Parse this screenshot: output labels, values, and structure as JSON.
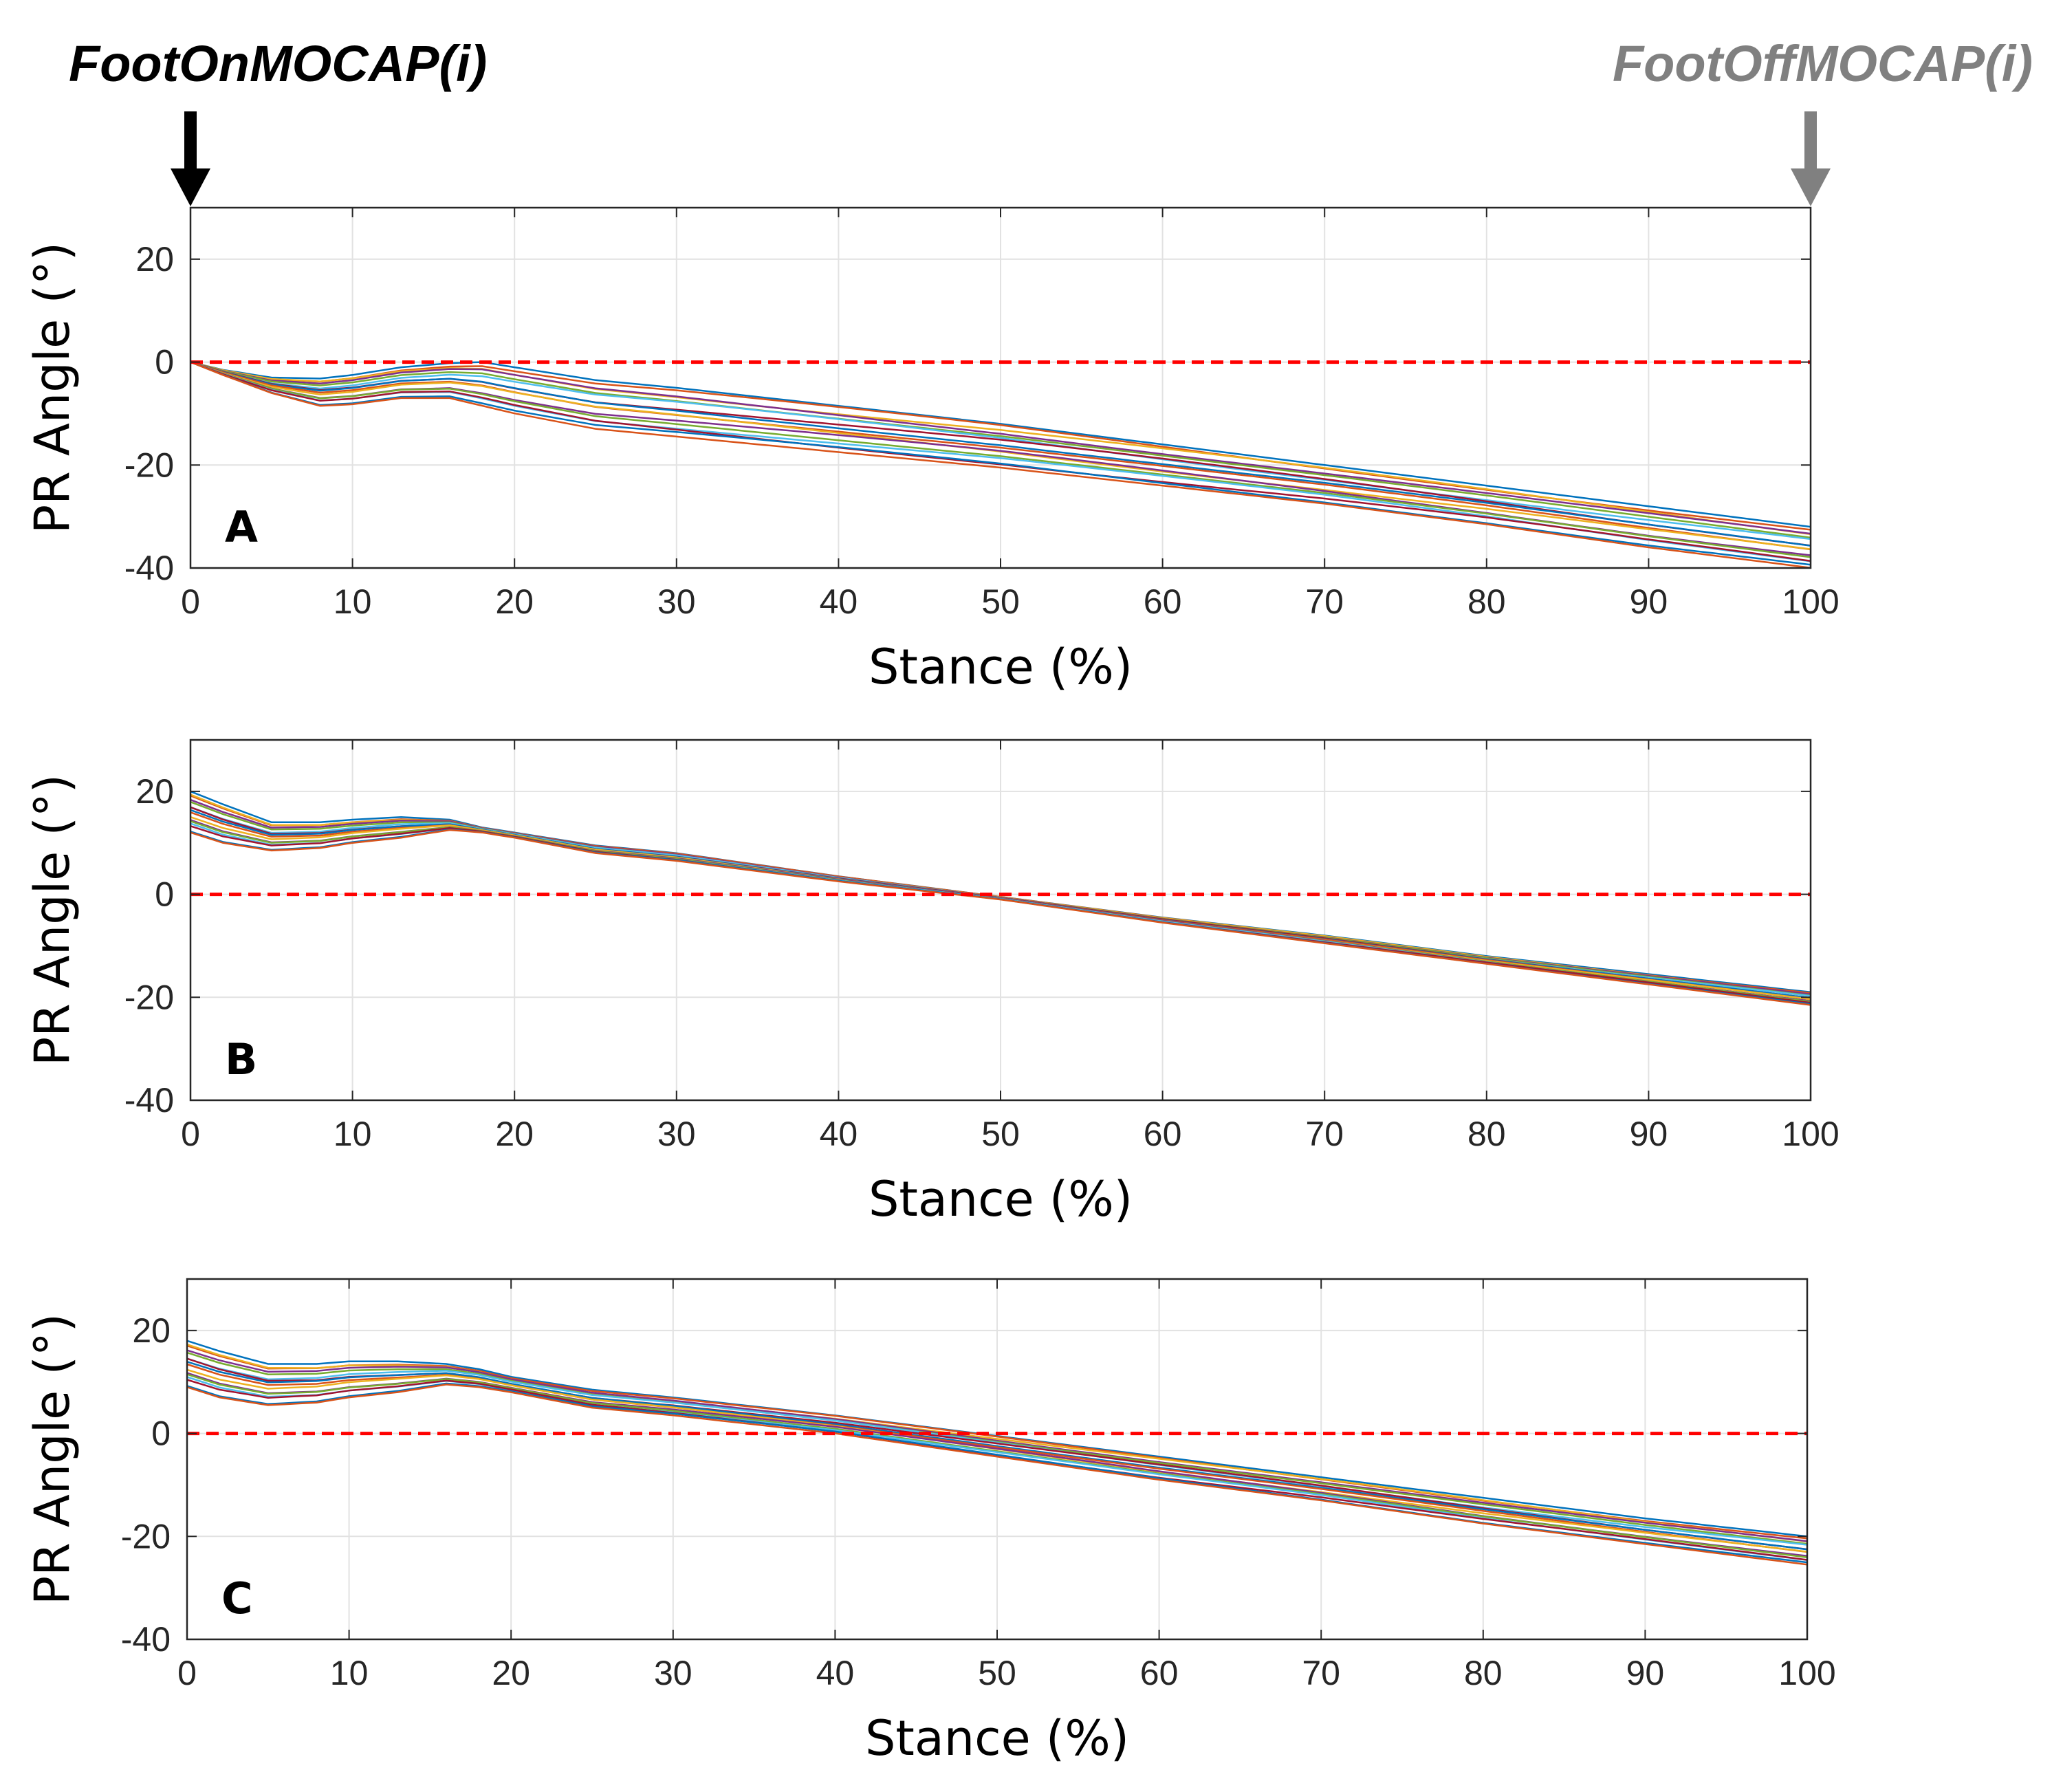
{
  "annotations": {
    "foot_on": {
      "prefix": "FootOnMOCAP(",
      "index": "i",
      "suffix": ")",
      "color": "#000000"
    },
    "foot_off": {
      "prefix": "FootOffMOCAP(",
      "index": "i",
      "suffix": ")",
      "color": "#808080"
    }
  },
  "chart_data": [
    {
      "type": "line",
      "panel_label": "A",
      "xlabel": "Stance (%)",
      "ylabel": "PR Angle (°)",
      "xlim": [
        0,
        100
      ],
      "ylim": [
        -40,
        30
      ],
      "xticks": [
        "0",
        "10",
        "20",
        "30",
        "40",
        "50",
        "60",
        "70",
        "80",
        "90",
        "100"
      ],
      "yticks": [
        "20",
        "0",
        "-20",
        "-40"
      ],
      "grid": true,
      "reference_line": {
        "y": 0,
        "color": "#ff0000",
        "style": "dashed"
      },
      "series_count": 16,
      "series_envelope": {
        "x": [
          0,
          2,
          5,
          8,
          10,
          13,
          16,
          18,
          20,
          25,
          30,
          40,
          50,
          60,
          70,
          80,
          90,
          100
        ],
        "upper": [
          0,
          -1.5,
          -3.0,
          -3.2,
          -2.5,
          -1.0,
          -0.2,
          0,
          -1.0,
          -3.5,
          -5.0,
          -8.5,
          -12.0,
          -16.0,
          -20.0,
          -24.0,
          -28.0,
          -32.0
        ],
        "lower": [
          0,
          -2.5,
          -6.0,
          -8.5,
          -8.2,
          -7.0,
          -7.0,
          -8.5,
          -10.0,
          -13.0,
          -14.5,
          -17.5,
          -20.5,
          -24.0,
          -27.5,
          -31.5,
          -36.0,
          -40.0
        ]
      }
    },
    {
      "type": "line",
      "panel_label": "B",
      "xlabel": "Stance (%)",
      "ylabel": "PR Angle (°)",
      "xlim": [
        0,
        100
      ],
      "ylim": [
        -40,
        30
      ],
      "xticks": [
        "0",
        "10",
        "20",
        "30",
        "40",
        "50",
        "60",
        "70",
        "80",
        "90",
        "100"
      ],
      "yticks": [
        "20",
        "0",
        "-20",
        "-40"
      ],
      "grid": true,
      "reference_line": {
        "y": 0,
        "color": "#ff0000",
        "style": "dashed"
      },
      "series_count": 16,
      "series_envelope": {
        "x": [
          0,
          2,
          5,
          8,
          10,
          13,
          16,
          18,
          20,
          25,
          30,
          40,
          50,
          60,
          70,
          80,
          90,
          100
        ],
        "upper": [
          20.0,
          17.5,
          14.0,
          14.0,
          14.5,
          15.0,
          14.5,
          13.0,
          12.0,
          9.5,
          8.0,
          3.5,
          -0.5,
          -4.5,
          -8.0,
          -12.0,
          -15.5,
          -19.0
        ],
        "lower": [
          12.0,
          10.0,
          8.5,
          9.0,
          10.0,
          11.0,
          12.5,
          12.0,
          11.0,
          8.0,
          6.5,
          2.5,
          -1.0,
          -5.5,
          -9.5,
          -13.5,
          -17.5,
          -21.5
        ]
      }
    },
    {
      "type": "line",
      "panel_label": "C",
      "xlabel": "Stance (%)",
      "ylabel": "PR Angle (°)",
      "xlim": [
        0,
        100
      ],
      "ylim": [
        -40,
        30
      ],
      "xticks": [
        "0",
        "10",
        "20",
        "30",
        "40",
        "50",
        "60",
        "70",
        "80",
        "90",
        "100"
      ],
      "yticks": [
        "20",
        "0",
        "-20",
        "-40"
      ],
      "grid": true,
      "reference_line": {
        "y": 0,
        "color": "#ff0000",
        "style": "dashed"
      },
      "series_count": 16,
      "series_envelope": {
        "x": [
          0,
          2,
          5,
          8,
          10,
          13,
          16,
          18,
          20,
          25,
          30,
          40,
          50,
          60,
          70,
          80,
          90,
          100
        ],
        "upper": [
          18.0,
          16.0,
          13.5,
          13.5,
          14.0,
          14.0,
          13.5,
          12.5,
          11.0,
          8.5,
          7.0,
          3.5,
          -0.5,
          -4.5,
          -8.5,
          -12.5,
          -16.5,
          -20.0
        ],
        "lower": [
          9.0,
          7.0,
          5.5,
          6.0,
          7.0,
          8.0,
          9.5,
          9.0,
          8.0,
          5.0,
          3.5,
          0.0,
          -4.5,
          -9.0,
          -13.0,
          -17.5,
          -21.5,
          -25.5
        ]
      }
    }
  ]
}
